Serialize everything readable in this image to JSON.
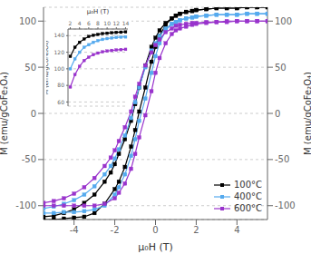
{
  "chart_data": [
    {
      "type": "line",
      "xlabel": "μ₀H (T)",
      "ylabel": "M (emu/gCoFe₂O₄)",
      "y2label": "M (emu/gCoFe₂O₄)",
      "xlim": [
        -5.5,
        5.5
      ],
      "ylim": [
        -115,
        115
      ],
      "y2lim": [
        -115,
        115
      ],
      "xticks": [
        -4,
        -2,
        0,
        2,
        4
      ],
      "yticks": [
        -100,
        -50,
        0,
        50,
        100
      ],
      "y2ticks": [
        -100,
        -50,
        0,
        50,
        100
      ],
      "grid": "y",
      "legend": "lower right",
      "series": [
        {
          "name": "100°C",
          "color": "#000000",
          "marker": "square",
          "x": [
            -5.5,
            -5.0,
            -4.5,
            -4.0,
            -3.5,
            -3.0,
            -2.5,
            -2.2,
            -2.0,
            -1.8,
            -1.5,
            -1.2,
            -1.0,
            -0.8,
            -0.5,
            -0.2,
            0.0,
            0.2,
            0.5,
            0.8,
            1.0,
            1.2,
            1.5,
            1.8,
            2.0,
            2.5,
            3.0,
            3.5,
            4.0,
            4.5,
            5.0,
            5.5,
            null,
            5.5,
            5.0,
            4.5,
            4.0,
            3.5,
            3.0,
            2.5,
            2.0,
            1.8,
            1.5,
            1.2,
            1.0,
            0.8,
            0.5,
            0.2,
            0.0,
            -0.2,
            -0.5,
            -0.8,
            -1.0,
            -1.2,
            -1.5,
            -1.8,
            -2.0,
            -2.5,
            -3.0,
            -3.5,
            -4.0,
            -4.5,
            -5.0,
            -5.5
          ],
          "values": [
            -112,
            -111,
            -108,
            -104,
            -97,
            -88,
            -74,
            -64,
            -55,
            -44,
            -28,
            -8,
            10,
            28,
            52,
            72,
            82,
            90,
            98,
            103,
            106,
            108,
            110,
            111,
            112,
            113,
            114,
            114,
            114,
            115,
            115,
            115,
            null,
            115,
            115,
            115,
            114,
            114,
            114,
            113,
            112,
            111,
            110,
            108,
            106,
            103,
            96,
            84,
            72,
            56,
            28,
            2,
            -18,
            -36,
            -58,
            -74,
            -82,
            -98,
            -108,
            -112,
            -113,
            -114,
            -115,
            -115
          ]
        },
        {
          "name": "400°C",
          "color": "#55AAEE",
          "marker": "square",
          "x": [
            -5.5,
            -5.0,
            -4.5,
            -4.0,
            -3.5,
            -3.0,
            -2.5,
            -2.2,
            -2.0,
            -1.8,
            -1.5,
            -1.2,
            -1.0,
            -0.8,
            -0.5,
            -0.2,
            0.0,
            0.2,
            0.5,
            0.8,
            1.0,
            1.2,
            1.5,
            1.8,
            2.0,
            2.5,
            3.0,
            3.5,
            4.0,
            4.5,
            5.0,
            5.5,
            null,
            5.5,
            5.0,
            4.5,
            4.0,
            3.5,
            3.0,
            2.5,
            2.0,
            1.8,
            1.5,
            1.2,
            1.0,
            0.8,
            0.5,
            0.2,
            0.0,
            -0.2,
            -0.5,
            -0.8,
            -1.0,
            -1.2,
            -1.5,
            -1.8,
            -2.0,
            -2.5,
            -3.0,
            -3.5,
            -4.0,
            -4.5,
            -5.0,
            -5.5
          ],
          "values": [
            -103,
            -101,
            -98,
            -94,
            -88,
            -79,
            -66,
            -57,
            -49,
            -39,
            -24,
            -5,
            12,
            28,
            50,
            68,
            76,
            84,
            92,
            97,
            99,
            101,
            103,
            104,
            105,
            106,
            107,
            107,
            107,
            108,
            108,
            108,
            null,
            108,
            108,
            108,
            107,
            107,
            107,
            106,
            105,
            104,
            103,
            101,
            99,
            97,
            90,
            76,
            62,
            44,
            16,
            -8,
            -28,
            -46,
            -66,
            -80,
            -88,
            -100,
            -104,
            -106,
            -107,
            -107,
            -108,
            -108
          ]
        },
        {
          "name": "600°C",
          "color": "#9933CC",
          "marker": "square",
          "x": [
            -5.5,
            -5.0,
            -4.5,
            -4.0,
            -3.5,
            -3.0,
            -2.5,
            -2.2,
            -2.0,
            -1.8,
            -1.5,
            -1.2,
            -1.0,
            -0.8,
            -0.5,
            -0.2,
            0.0,
            0.2,
            0.5,
            0.8,
            1.0,
            1.2,
            1.5,
            1.8,
            2.0,
            2.5,
            3.0,
            3.5,
            4.0,
            4.5,
            5.0,
            5.5,
            null,
            5.5,
            5.0,
            4.5,
            4.0,
            3.5,
            3.0,
            2.5,
            2.0,
            1.8,
            1.5,
            1.2,
            1.0,
            0.8,
            0.5,
            0.2,
            0.0,
            -0.2,
            -0.5,
            -0.8,
            -1.0,
            -1.2,
            -1.5,
            -1.8,
            -2.0,
            -2.5,
            -3.0,
            -3.5,
            -4.0,
            -4.5,
            -5.0,
            -5.5
          ],
          "values": [
            -97,
            -95,
            -92,
            -87,
            -80,
            -70,
            -57,
            -48,
            -40,
            -30,
            -15,
            2,
            18,
            32,
            52,
            66,
            74,
            80,
            88,
            92,
            95,
            96,
            97,
            98,
            98,
            99,
            99,
            100,
            100,
            100,
            100,
            100,
            null,
            100,
            100,
            100,
            100,
            99,
            99,
            98,
            97,
            96,
            94,
            92,
            90,
            86,
            76,
            60,
            44,
            24,
            -2,
            -26,
            -44,
            -60,
            -76,
            -86,
            -92,
            -98,
            -100,
            -100,
            -100,
            -100,
            -100,
            -100
          ]
        }
      ]
    },
    {
      "type": "line",
      "xlabel": "μ₀H (T)",
      "ylabel": "M (emu/gCoFe₂O₄)",
      "xlim": [
        1.5,
        14.5
      ],
      "ylim": [
        55,
        148
      ],
      "xticks": [
        2,
        4,
        6,
        8,
        10,
        12,
        14
      ],
      "yticks": [
        60,
        80,
        100,
        120,
        140
      ],
      "grid": "y",
      "series": [
        {
          "color": "#000000",
          "marker": "square",
          "x": [
            2,
            3,
            4,
            5,
            6,
            7,
            8,
            9,
            10,
            11,
            12,
            13,
            14
          ],
          "values": [
            115,
            126,
            132,
            136,
            139,
            140.5,
            141.5,
            142.5,
            143,
            143.5,
            144,
            144.2,
            144.5
          ]
        },
        {
          "color": "#55AAEE",
          "marker": "square",
          "x": [
            2,
            3,
            4,
            5,
            6,
            7,
            8,
            9,
            10,
            11,
            12,
            13,
            14
          ],
          "values": [
            100,
            112,
            120,
            126,
            129,
            132,
            134,
            135.5,
            136.5,
            137.2,
            137.8,
            138.2,
            138.5
          ]
        },
        {
          "color": "#9933CC",
          "marker": "square",
          "x": [
            2,
            3,
            4,
            5,
            6,
            7,
            8,
            9,
            10,
            11,
            12,
            13,
            14
          ],
          "values": [
            78,
            93,
            103,
            110,
            114,
            117,
            119,
            120.5,
            121.5,
            122.2,
            122.8,
            123.2,
            123.5
          ]
        }
      ]
    }
  ]
}
